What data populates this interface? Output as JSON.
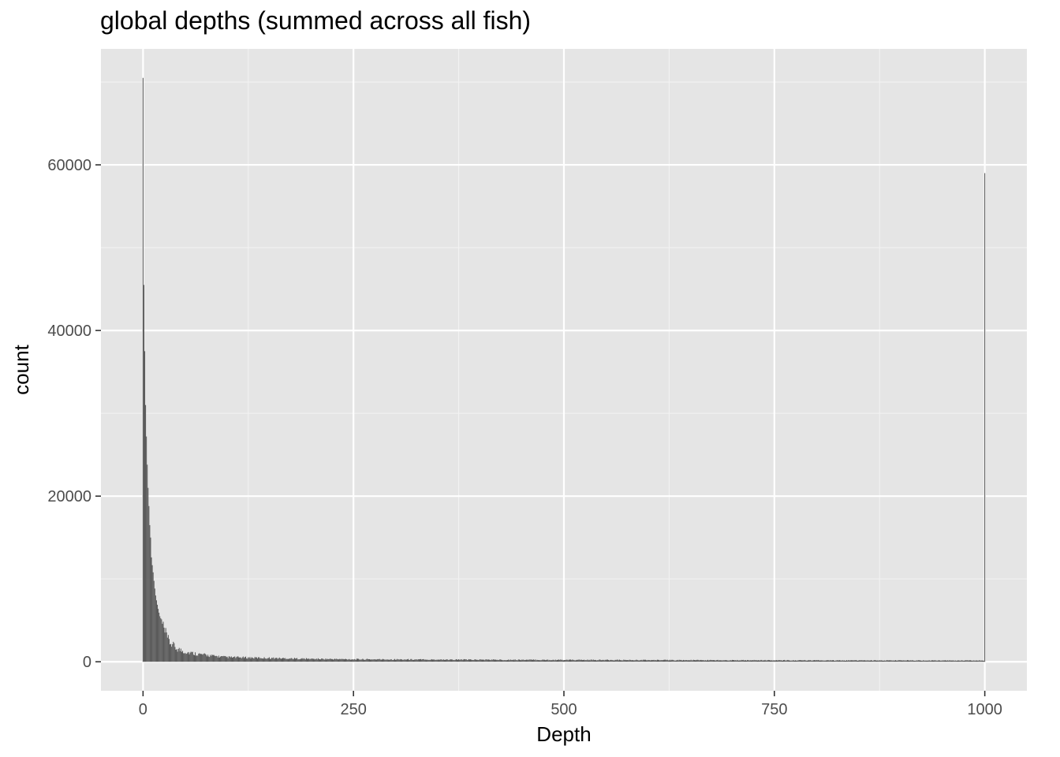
{
  "chart_data": {
    "type": "bar",
    "title": "global depths (summed across all fish)",
    "xlabel": "Depth",
    "ylabel": "count",
    "x_ticks": [
      0,
      250,
      500,
      750,
      1000
    ],
    "y_ticks": [
      0,
      20000,
      40000,
      60000
    ],
    "xlim": [
      -50,
      1050
    ],
    "ylim": [
      -3500,
      74000
    ],
    "grid": true,
    "background": "#e5e5e5",
    "bar_color": "#595959",
    "bin_width": 1,
    "decay_curve": {
      "peak_value": 70500,
      "peak_x": 0,
      "scale": 38.9,
      "power": 1.48,
      "floor": 300,
      "decay_to_floor_at": 250
    },
    "series": [
      {
        "values": [
          {
            "x": 0,
            "y": 70500
          },
          {
            "x": 1,
            "y": 45500
          },
          {
            "x": 2,
            "y": 37500
          },
          {
            "x": 3,
            "y": 31000
          },
          {
            "x": 4,
            "y": 27200
          },
          {
            "x": 5,
            "y": 23800
          },
          {
            "x": 6,
            "y": 21000
          },
          {
            "x": 7,
            "y": 18800
          },
          {
            "x": 8,
            "y": 16500
          },
          {
            "x": 9,
            "y": 15000
          },
          {
            "x": 10,
            "y": 12600
          },
          {
            "x": 12,
            "y": 10800
          },
          {
            "x": 15,
            "y": 8000
          },
          {
            "x": 20,
            "y": 5500
          },
          {
            "x": 25,
            "y": 3800
          },
          {
            "x": 30,
            "y": 2600
          },
          {
            "x": 40,
            "y": 1600
          },
          {
            "x": 50,
            "y": 1200
          },
          {
            "x": 75,
            "y": 800
          },
          {
            "x": 100,
            "y": 550
          },
          {
            "x": 150,
            "y": 450
          },
          {
            "x": 200,
            "y": 350
          },
          {
            "x": 250,
            "y": 300
          },
          {
            "x": 500,
            "y": 220
          },
          {
            "x": 750,
            "y": 180
          },
          {
            "x": 999,
            "y": 150
          },
          {
            "x": 1000,
            "y": 59000
          }
        ]
      }
    ]
  }
}
